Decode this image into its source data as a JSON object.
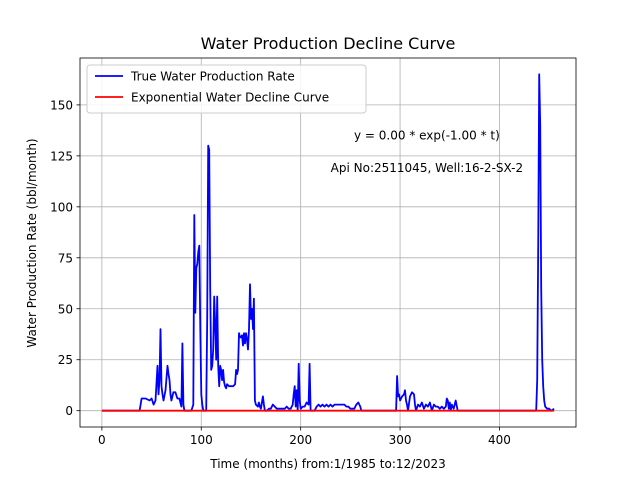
{
  "chart_data": {
    "type": "line",
    "title": "Water Production Decline Curve",
    "xlabel": "Time (months) from:1/1985 to:12/2023",
    "ylabel": "Water Production Rate (bbl/month)",
    "xlim": [
      -22,
      477
    ],
    "ylim": [
      -8,
      173
    ],
    "xticks": [
      0,
      100,
      200,
      300,
      400
    ],
    "yticks": [
      0,
      25,
      50,
      75,
      100,
      125,
      150
    ],
    "grid": true,
    "legend_position": "top-left",
    "annotations": [
      {
        "text": "y = 0.00 * exp(-1.00 * t)",
        "x": 327,
        "y": 135
      },
      {
        "text": "Api No:2511045, Well:16-2-SX-2",
        "x": 327,
        "y": 119
      }
    ],
    "series": [
      {
        "name": "True Water Production Rate",
        "color": "#0000ff",
        "points": [
          [
            0,
            0
          ],
          [
            38,
            0
          ],
          [
            40,
            6
          ],
          [
            44,
            6
          ],
          [
            48,
            5
          ],
          [
            50,
            6
          ],
          [
            52,
            3
          ],
          [
            54,
            5
          ],
          [
            56,
            22
          ],
          [
            57,
            8
          ],
          [
            58,
            15
          ],
          [
            59,
            40
          ],
          [
            60,
            12
          ],
          [
            61,
            8
          ],
          [
            62,
            5
          ],
          [
            64,
            10
          ],
          [
            66,
            22
          ],
          [
            67,
            18
          ],
          [
            68,
            15
          ],
          [
            69,
            8
          ],
          [
            70,
            5
          ],
          [
            72,
            9
          ],
          [
            74,
            9
          ],
          [
            76,
            6
          ],
          [
            78,
            6
          ],
          [
            79,
            4
          ],
          [
            80,
            2
          ],
          [
            81,
            33
          ],
          [
            82,
            3
          ],
          [
            83,
            0
          ],
          [
            90,
            0
          ],
          [
            92,
            3
          ],
          [
            93,
            96
          ],
          [
            94,
            48
          ],
          [
            95,
            70
          ],
          [
            96,
            72
          ],
          [
            97,
            78
          ],
          [
            98,
            81
          ],
          [
            99,
            40
          ],
          [
            100,
            8
          ],
          [
            101,
            3
          ],
          [
            102,
            0
          ],
          [
            105,
            0
          ],
          [
            106,
            45
          ],
          [
            107,
            130
          ],
          [
            108,
            128
          ],
          [
            109,
            60
          ],
          [
            110,
            20
          ],
          [
            111,
            22
          ],
          [
            112,
            30
          ],
          [
            113,
            56
          ],
          [
            114,
            42
          ],
          [
            115,
            25
          ],
          [
            116,
            56
          ],
          [
            117,
            22
          ],
          [
            118,
            12
          ],
          [
            119,
            22
          ],
          [
            120,
            20
          ],
          [
            121,
            15
          ],
          [
            122,
            20
          ],
          [
            123,
            14
          ],
          [
            124,
            12
          ],
          [
            125,
            11
          ],
          [
            126,
            13
          ],
          [
            128,
            12
          ],
          [
            130,
            12
          ],
          [
            132,
            12
          ],
          [
            134,
            13
          ],
          [
            135,
            20
          ],
          [
            136,
            18
          ],
          [
            137,
            20
          ],
          [
            138,
            38
          ],
          [
            139,
            36
          ],
          [
            140,
            36
          ],
          [
            141,
            37
          ],
          [
            142,
            32
          ],
          [
            143,
            38
          ],
          [
            144,
            33
          ],
          [
            145,
            38
          ],
          [
            146,
            35
          ],
          [
            147,
            30
          ],
          [
            148,
            40
          ],
          [
            149,
            62
          ],
          [
            150,
            45
          ],
          [
            151,
            50
          ],
          [
            152,
            40
          ],
          [
            153,
            55
          ],
          [
            154,
            5
          ],
          [
            155,
            3
          ],
          [
            157,
            2
          ],
          [
            158,
            4
          ],
          [
            159,
            2
          ],
          [
            160,
            1
          ],
          [
            162,
            7
          ],
          [
            163,
            3
          ],
          [
            164,
            0
          ],
          [
            166,
            0
          ],
          [
            168,
            1
          ],
          [
            170,
            1
          ],
          [
            172,
            3
          ],
          [
            174,
            2
          ],
          [
            176,
            1
          ],
          [
            178,
            1
          ],
          [
            180,
            1
          ],
          [
            182,
            1
          ],
          [
            184,
            1
          ],
          [
            186,
            2
          ],
          [
            188,
            1
          ],
          [
            190,
            1
          ],
          [
            192,
            3
          ],
          [
            193,
            8
          ],
          [
            194,
            12
          ],
          [
            195,
            2
          ],
          [
            196,
            10
          ],
          [
            197,
            0
          ],
          [
            198,
            23
          ],
          [
            199,
            5
          ],
          [
            200,
            1
          ],
          [
            202,
            2
          ],
          [
            204,
            2
          ],
          [
            206,
            4
          ],
          [
            208,
            3
          ],
          [
            209,
            23
          ],
          [
            210,
            0
          ],
          [
            214,
            0
          ],
          [
            216,
            2
          ],
          [
            218,
            3
          ],
          [
            220,
            2
          ],
          [
            222,
            3
          ],
          [
            224,
            2
          ],
          [
            226,
            3
          ],
          [
            228,
            2
          ],
          [
            230,
            3
          ],
          [
            232,
            2
          ],
          [
            234,
            3
          ],
          [
            236,
            3
          ],
          [
            238,
            3
          ],
          [
            240,
            3
          ],
          [
            242,
            3
          ],
          [
            244,
            3
          ],
          [
            246,
            2
          ],
          [
            248,
            2
          ],
          [
            250,
            1
          ],
          [
            252,
            1
          ],
          [
            254,
            1
          ],
          [
            256,
            3
          ],
          [
            258,
            4
          ],
          [
            260,
            2
          ],
          [
            261,
            0
          ],
          [
            296,
            0
          ],
          [
            297,
            17
          ],
          [
            298,
            7
          ],
          [
            299,
            8
          ],
          [
            300,
            5
          ],
          [
            302,
            7
          ],
          [
            304,
            8
          ],
          [
            305,
            10
          ],
          [
            306,
            5
          ],
          [
            307,
            3
          ],
          [
            308,
            0
          ],
          [
            310,
            7
          ],
          [
            312,
            9
          ],
          [
            314,
            8
          ],
          [
            315,
            3
          ],
          [
            316,
            0
          ],
          [
            318,
            3
          ],
          [
            320,
            2
          ],
          [
            322,
            4
          ],
          [
            324,
            1
          ],
          [
            326,
            3
          ],
          [
            328,
            2
          ],
          [
            330,
            4
          ],
          [
            332,
            0
          ],
          [
            334,
            3
          ],
          [
            336,
            2
          ],
          [
            338,
            2
          ],
          [
            340,
            1
          ],
          [
            342,
            2
          ],
          [
            344,
            1
          ],
          [
            346,
            2
          ],
          [
            347,
            6
          ],
          [
            348,
            5
          ],
          [
            349,
            1
          ],
          [
            350,
            4
          ],
          [
            351,
            0
          ],
          [
            352,
            3
          ],
          [
            354,
            1
          ],
          [
            356,
            5
          ],
          [
            358,
            0
          ],
          [
            437,
            0
          ],
          [
            438,
            15
          ],
          [
            439,
            80
          ],
          [
            440,
            165
          ],
          [
            441,
            140
          ],
          [
            442,
            60
          ],
          [
            443,
            25
          ],
          [
            444,
            12
          ],
          [
            445,
            5
          ],
          [
            446,
            2
          ],
          [
            448,
            1
          ],
          [
            450,
            1
          ],
          [
            452,
            0
          ],
          [
            455,
            1
          ]
        ]
      },
      {
        "name": "Exponential Water Decline Curve",
        "color": "#ff0000",
        "points": [
          [
            0,
            0
          ],
          [
            455,
            0
          ]
        ]
      }
    ]
  }
}
